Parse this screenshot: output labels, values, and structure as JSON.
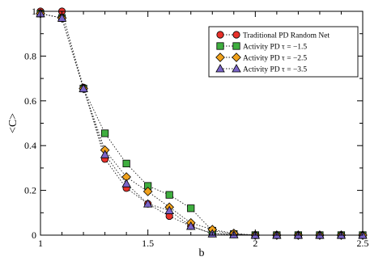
{
  "chart_data": {
    "type": "line",
    "xlabel": "b",
    "ylabel": "<C>",
    "xlim": [
      1,
      2.5
    ],
    "ylim": [
      0,
      1
    ],
    "xticks": [
      1,
      1.5,
      2,
      2.5
    ],
    "yticks": [
      0,
      0.2,
      0.4,
      0.6,
      0.8,
      1
    ],
    "x_tick_labels": [
      "1",
      "1.5",
      "2",
      "2.5"
    ],
    "y_tick_labels": [
      "0",
      "0.2",
      "0.4",
      "0.6",
      "0.8",
      "1"
    ],
    "grid": false,
    "legend_position": "top-right",
    "series": [
      {
        "name": "Traditional PD Random Net",
        "marker": "circle",
        "color": "#e8312a",
        "points": [
          [
            1.0,
            1.0
          ],
          [
            1.1,
            1.0
          ],
          [
            1.2,
            0.66
          ],
          [
            1.3,
            0.34
          ],
          [
            1.4,
            0.21
          ],
          [
            1.5,
            0.14
          ],
          [
            1.6,
            0.085
          ],
          [
            1.7,
            0.04
          ],
          [
            1.8,
            0.008
          ],
          [
            1.9,
            0.003
          ],
          [
            2.0,
            0.0
          ],
          [
            2.1,
            0.0
          ],
          [
            2.2,
            0.0
          ],
          [
            2.3,
            0.0
          ],
          [
            2.4,
            0.0
          ],
          [
            2.5,
            0.0
          ]
        ]
      },
      {
        "name": "Activity PD  τ = −1.5",
        "marker": "square",
        "color": "#3fae3f",
        "points": [
          [
            1.0,
            0.99
          ],
          [
            1.1,
            0.97
          ],
          [
            1.2,
            0.655
          ],
          [
            1.3,
            0.455
          ],
          [
            1.4,
            0.32
          ],
          [
            1.5,
            0.22
          ],
          [
            1.6,
            0.18
          ],
          [
            1.7,
            0.12
          ],
          [
            1.8,
            0.02
          ],
          [
            1.9,
            0.005
          ],
          [
            2.0,
            0.0
          ],
          [
            2.1,
            0.0
          ],
          [
            2.2,
            0.0
          ],
          [
            2.3,
            0.0
          ],
          [
            2.4,
            0.0
          ],
          [
            2.5,
            0.0
          ]
        ]
      },
      {
        "name": "Activity PD  τ = −2.5",
        "marker": "diamond",
        "color": "#f0a11c",
        "points": [
          [
            1.0,
            0.99
          ],
          [
            1.1,
            0.97
          ],
          [
            1.2,
            0.655
          ],
          [
            1.3,
            0.38
          ],
          [
            1.4,
            0.26
          ],
          [
            1.5,
            0.195
          ],
          [
            1.6,
            0.125
          ],
          [
            1.7,
            0.055
          ],
          [
            1.8,
            0.025
          ],
          [
            1.9,
            0.008
          ],
          [
            2.0,
            0.0
          ],
          [
            2.1,
            0.0
          ],
          [
            2.2,
            0.0
          ],
          [
            2.3,
            0.0
          ],
          [
            2.4,
            0.0
          ],
          [
            2.5,
            0.0
          ]
        ]
      },
      {
        "name": "Activity PD  τ = −3.5",
        "marker": "triangle",
        "color": "#7a64c8",
        "points": [
          [
            1.0,
            0.99
          ],
          [
            1.1,
            0.97
          ],
          [
            1.2,
            0.655
          ],
          [
            1.3,
            0.36
          ],
          [
            1.4,
            0.23
          ],
          [
            1.5,
            0.14
          ],
          [
            1.6,
            0.11
          ],
          [
            1.7,
            0.04
          ],
          [
            1.8,
            0.006
          ],
          [
            1.9,
            0.002
          ],
          [
            2.0,
            0.0
          ],
          [
            2.1,
            0.0
          ],
          [
            2.2,
            0.0
          ],
          [
            2.3,
            0.0
          ],
          [
            2.4,
            0.0
          ],
          [
            2.5,
            0.0
          ]
        ]
      }
    ]
  }
}
